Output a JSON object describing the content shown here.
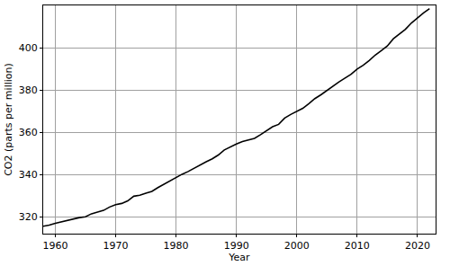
{
  "chart_data": {
    "type": "line",
    "x_label": "Year",
    "y_label": "CO2 (parts per million)",
    "x": [
      1958,
      1959,
      1960,
      1961,
      1962,
      1963,
      1964,
      1965,
      1966,
      1967,
      1968,
      1969,
      1970,
      1971,
      1972,
      1973,
      1974,
      1975,
      1976,
      1977,
      1978,
      1979,
      1980,
      1981,
      1982,
      1983,
      1984,
      1985,
      1986,
      1987,
      1988,
      1989,
      1990,
      1991,
      1992,
      1993,
      1994,
      1995,
      1996,
      1997,
      1998,
      1999,
      2000,
      2001,
      2002,
      2003,
      2004,
      2005,
      2006,
      2007,
      2008,
      2009,
      2010,
      2011,
      2012,
      2013,
      2014,
      2015,
      2016,
      2017,
      2018,
      2019,
      2020,
      2021,
      2022
    ],
    "values": [
      315.5,
      316.0,
      316.9,
      317.6,
      318.5,
      319.0,
      319.6,
      320.0,
      321.4,
      322.2,
      323.0,
      324.6,
      325.7,
      326.3,
      327.5,
      329.7,
      330.2,
      331.1,
      332.0,
      333.8,
      335.4,
      336.8,
      338.7,
      340.1,
      341.4,
      343.0,
      344.6,
      346.0,
      347.4,
      349.2,
      351.6,
      353.1,
      354.4,
      355.6,
      356.5,
      357.1,
      358.8,
      360.8,
      362.6,
      363.7,
      366.7,
      368.4,
      369.7,
      371.3,
      373.5,
      375.9,
      377.7,
      379.8,
      381.9,
      383.8,
      385.6,
      387.4,
      389.9,
      391.7,
      393.9,
      396.5,
      398.6,
      400.8,
      404.2,
      406.5,
      408.7,
      411.7,
      414.2,
      416.4,
      418.5
    ],
    "color": "#000000",
    "xlim": [
      1958,
      2023
    ],
    "xticks": [
      1960,
      1970,
      1980,
      1990,
      2000,
      2010,
      2020
    ],
    "ylim": [
      312,
      420
    ],
    "yticks": [
      320,
      340,
      360,
      380,
      400
    ],
    "grid": true
  }
}
